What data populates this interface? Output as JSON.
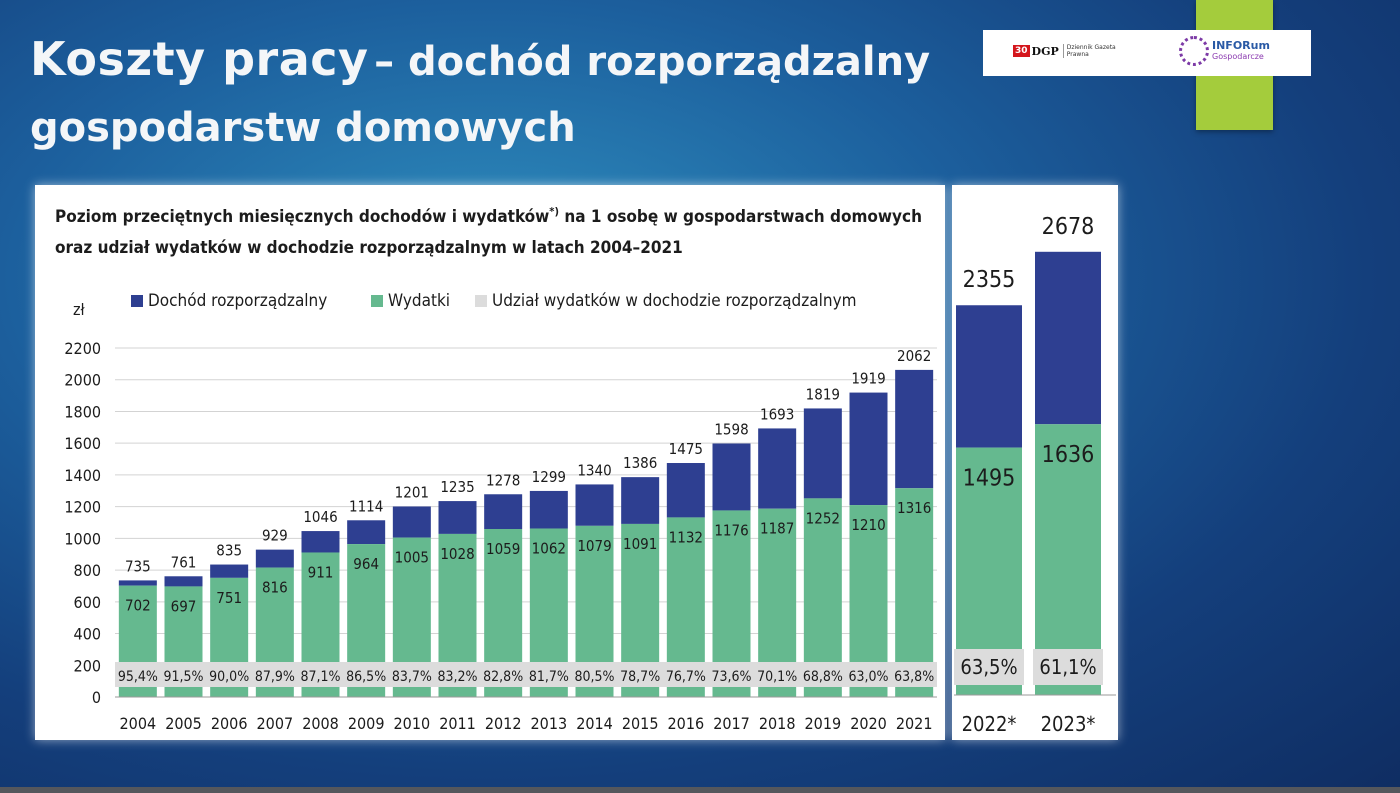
{
  "slide": {
    "title_main": "Koszty pracy",
    "title_rest": "– dochód rozporządzalny gospodarstw domowych",
    "title_line2": "gospodarstw domowych"
  },
  "logos": {
    "dgp_box": "30",
    "dgp_name": "DGP",
    "dgp_sub": "Dziennik Gazeta Prawna",
    "inforum_a": "INFORum",
    "inforum_b": "Gospodarcze"
  },
  "colors": {
    "income": "#2e3f91",
    "expenses": "#65b98f",
    "share_band": "#dcdcdc",
    "grid": "#d3d3d3",
    "text": "#1c1c1c",
    "slide_green": "#a4cc3c"
  },
  "chart_data": [
    {
      "type": "bar",
      "title": "Poziom przeciętnych miesięcznych dochodów i wydatków",
      "title_superscript": "*)",
      "title_cont": " na 1 osobę w gospodarstwach domowych",
      "title_line2": "oraz udział wydatków w dochodzie rozporządzalnym w latach 2004–2021",
      "ylabel": "zł",
      "ylim": [
        0,
        2200
      ],
      "yticks": [
        0,
        200,
        400,
        600,
        800,
        1000,
        1200,
        1400,
        1600,
        1800,
        2000,
        2200
      ],
      "grid": true,
      "legend_position": "top",
      "legend": [
        "Dochód rozporządzalny",
        "Wydatki",
        "Udział wydatków w dochodzie rozporządzalnym"
      ],
      "categories": [
        "2004",
        "2005",
        "2006",
        "2007",
        "2008",
        "2009",
        "2010",
        "2011",
        "2012",
        "2013",
        "2014",
        "2015",
        "2016",
        "2017",
        "2018",
        "2019",
        "2020",
        "2021"
      ],
      "series": [
        {
          "name": "Dochód rozporządzalny",
          "values": [
            735,
            761,
            835,
            929,
            1046,
            1114,
            1201,
            1235,
            1278,
            1299,
            1340,
            1386,
            1475,
            1598,
            1693,
            1819,
            1919,
            2062
          ]
        },
        {
          "name": "Wydatki",
          "values": [
            702,
            697,
            751,
            816,
            911,
            964,
            1005,
            1028,
            1059,
            1062,
            1079,
            1091,
            1132,
            1176,
            1187,
            1252,
            1210,
            1316
          ]
        }
      ],
      "share_labels": [
        "95,4%",
        "91,5%",
        "90,0%",
        "87,9%",
        "87,1%",
        "86,5%",
        "83,7%",
        "83,2%",
        "82,8%",
        "81,7%",
        "80,5%",
        "78,7%",
        "76,7%",
        "73,6%",
        "70,1%",
        "68,8%",
        "63,0%",
        "63,8%"
      ]
    },
    {
      "type": "bar",
      "categories": [
        "2022*",
        "2023*"
      ],
      "ylim": [
        0,
        2800
      ],
      "series": [
        {
          "name": "Dochód rozporządzalny",
          "values": [
            2355,
            2678
          ]
        },
        {
          "name": "Wydatki",
          "values": [
            1495,
            1636
          ]
        }
      ],
      "share_labels": [
        "63,5%",
        "61,1%"
      ]
    }
  ]
}
